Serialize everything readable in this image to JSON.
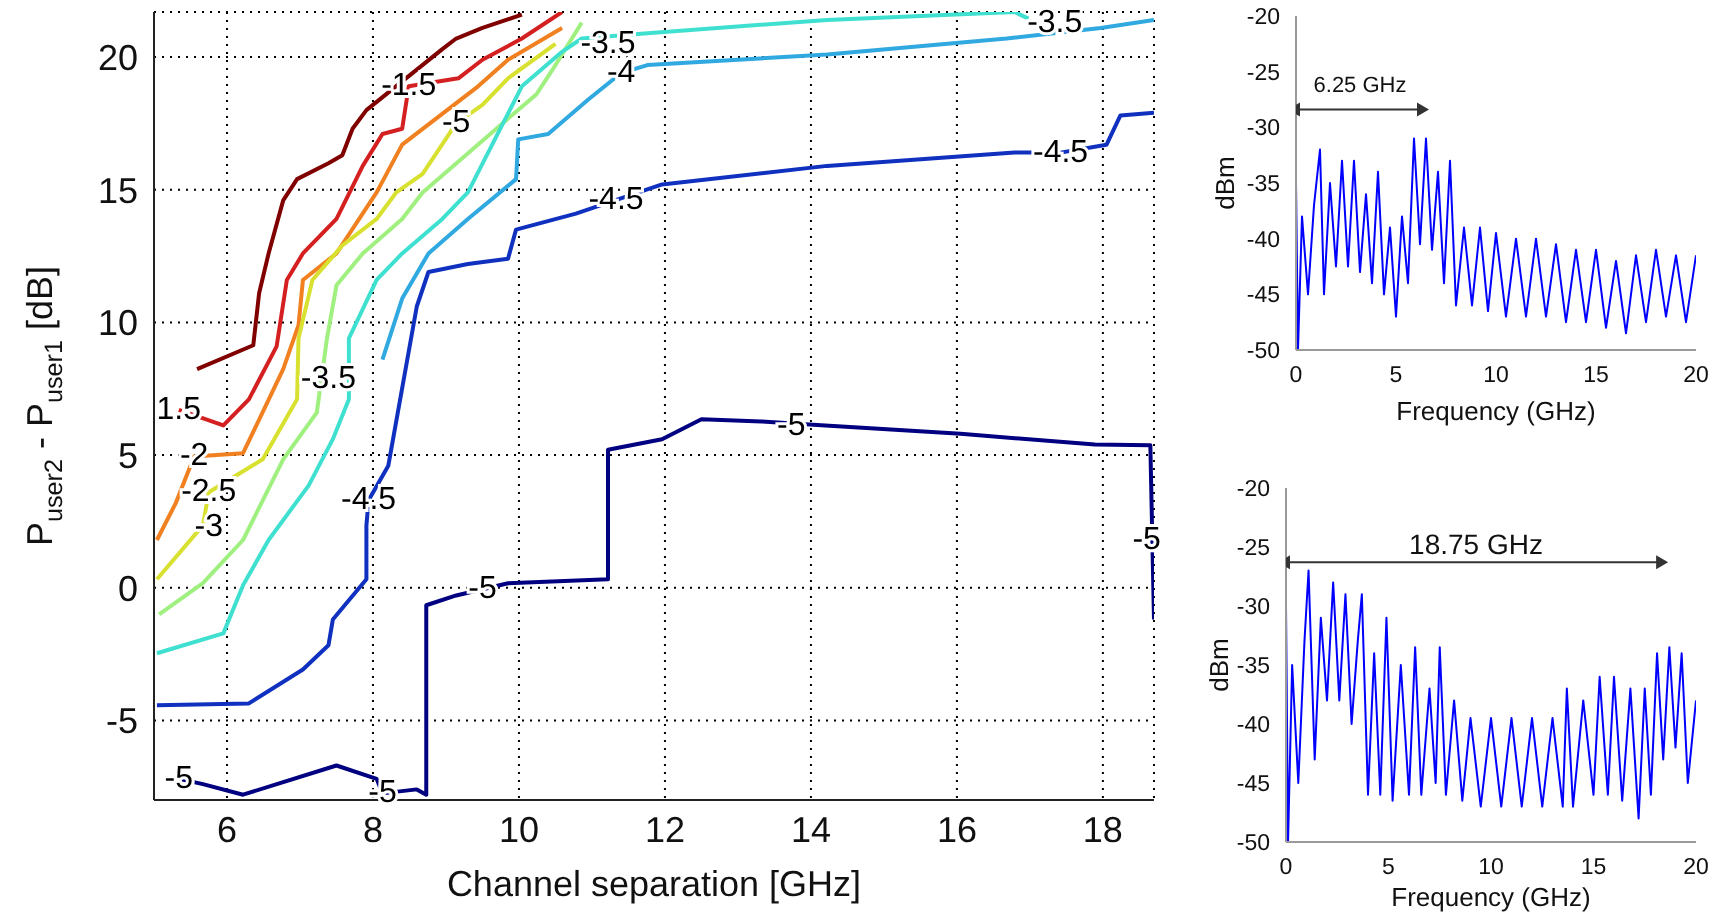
{
  "chart_data": [
    {
      "type": "line",
      "xlabel": "Channel separation [GHz]",
      "ylabel": "P$_{user2}$ - P$_{user1}$ [dB]",
      "xlim": [
        5,
        18.7
      ],
      "xticks": [
        6,
        8,
        10,
        12,
        14,
        16,
        18
      ],
      "ylim": [
        -8,
        21.7
      ],
      "yticks": [
        -5,
        0,
        5,
        10,
        15,
        20
      ],
      "grid": true,
      "series": [
        {
          "color": "#800000",
          "x": [
            5.59,
            6.36,
            6.44,
            6.57,
            6.77,
            6.96,
            7.39,
            7.58,
            7.72,
            7.91,
            8.95,
            9.14,
            9.5,
            10.04
          ],
          "values": [
            8.24,
            9.14,
            11.1,
            12.6,
            14.6,
            15.4,
            16.0,
            16.3,
            17.3,
            18.0,
            20.3,
            20.7,
            21.1,
            21.6
          ]
        },
        {
          "color": "#d42020",
          "x": [
            5.34,
            5.95,
            6.3,
            6.68,
            6.82,
            7.04,
            7.5,
            7.86,
            8.13,
            8.4,
            8.49,
            9.17,
            9.5,
            10.04,
            10.59
          ],
          "values": [
            6.7,
            6.12,
            7.1,
            9.1,
            11.6,
            12.6,
            13.9,
            15.9,
            17.1,
            17.3,
            18.9,
            19.2,
            19.9,
            20.7,
            21.7
          ]
        },
        {
          "color": "#f08020",
          "x": [
            5.04,
            5.3,
            5.55,
            6.22,
            6.77,
            6.98,
            7.04,
            7.5,
            8.05,
            8.4,
            9.44,
            9.85,
            10.59
          ],
          "values": [
            1.8,
            3.2,
            4.95,
            5.07,
            8.24,
            9.9,
            11.6,
            12.6,
            14.9,
            16.7,
            18.9,
            19.9,
            21.1
          ]
        },
        {
          "color": "#d8e030",
          "x": [
            5.04,
            5.67,
            5.75,
            6.49,
            6.96,
            6.98,
            7.17,
            7.58,
            8.05,
            8.32,
            8.68,
            9.14,
            9.5,
            9.85,
            10.5
          ],
          "values": [
            0.32,
            2.35,
            3.6,
            4.84,
            7.1,
            9.4,
            11.6,
            12.9,
            13.9,
            14.9,
            15.6,
            17.5,
            18.2,
            19.2,
            20.5
          ]
        },
        {
          "color": "#a0f080",
          "x": [
            5.07,
            5.67,
            6.22,
            6.77,
            7.23,
            7.37,
            7.5,
            7.86,
            8.4,
            8.68,
            9.69,
            10.24,
            10.5,
            10.86
          ],
          "values": [
            -1.0,
            0.17,
            1.8,
            4.84,
            6.6,
            9.4,
            11.4,
            12.6,
            13.9,
            14.9,
            17.3,
            18.6,
            19.7,
            21.3
          ]
        },
        {
          "color": "#40e0d0",
          "x": [
            5.04,
            5.95,
            6.22,
            6.57,
            7.12,
            7.45,
            7.67,
            7.67,
            8.05,
            8.4,
            8.95,
            9.3,
            10.04,
            10.59,
            10.86,
            11.76,
            14.22,
            16.79,
            16.98
          ],
          "values": [
            -2.47,
            -1.72,
            0.09,
            1.8,
            3.86,
            5.6,
            7.1,
            9.4,
            11.6,
            12.6,
            13.9,
            14.9,
            18.9,
            20.2,
            20.7,
            20.9,
            21.4,
            21.7,
            21.45
          ]
        },
        {
          "color": "#30a8e0",
          "x": [
            8.13,
            8.4,
            8.76,
            9.3,
            9.96,
            9.99,
            10.4,
            10.95,
            11.4,
            11.76,
            14.22,
            16.68,
            17.97,
            18.7
          ],
          "values": [
            8.6,
            10.9,
            12.6,
            13.9,
            15.4,
            16.9,
            17.1,
            18.4,
            19.4,
            19.7,
            20.1,
            20.7,
            21.1,
            21.4
          ]
        },
        {
          "color": "#1030c0",
          "x": [
            5.04,
            6.3,
            7.04,
            7.39,
            7.45,
            7.91,
            7.91,
            7.94,
            8.21,
            8.6,
            8.76,
            9.3,
            9.85,
            9.96,
            10.78,
            11.96,
            14.22,
            16.79,
            17.42,
            18.05,
            18.24,
            18.7
          ],
          "values": [
            -4.43,
            -4.36,
            -3.08,
            -2.17,
            -1.2,
            0.32,
            2.35,
            3.3,
            4.6,
            10.6,
            11.9,
            12.2,
            12.4,
            13.5,
            14.1,
            15.2,
            15.9,
            16.4,
            16.4,
            16.7,
            17.8,
            17.9
          ]
        },
        {
          "color": "#000080",
          "x": [
            5.34,
            5.67,
            6.22,
            7.5,
            8.05,
            8.13,
            8.6,
            8.73,
            8.73,
            9.14,
            9.85,
            11.22,
            11.22,
            11.96,
            12.5,
            13.32,
            14.14,
            16.05,
            17.89,
            18.65,
            18.7
          ],
          "values": [
            -7.2,
            -7.4,
            -7.8,
            -6.7,
            -7.2,
            -7.75,
            -7.6,
            -7.8,
            -0.66,
            -0.29,
            0.17,
            0.32,
            5.2,
            5.6,
            6.35,
            6.27,
            6.12,
            5.8,
            5.4,
            5.37,
            -1.2
          ]
        }
      ],
      "annotations": [
        {
          "text": "1.5",
          "x": 5.34,
          "y": 6.7
        },
        {
          "text": "-2",
          "x": 5.55,
          "y": 4.95
        },
        {
          "text": "-2.5",
          "x": 5.75,
          "y": 3.6
        },
        {
          "text": "-3",
          "x": 5.75,
          "y": 2.3
        },
        {
          "text": "-3.5",
          "x": 7.39,
          "y": 7.86
        },
        {
          "text": "-4.5",
          "x": 7.94,
          "y": 3.3
        },
        {
          "text": "-1.5",
          "x": 8.49,
          "y": 18.9
        },
        {
          "text": "-5",
          "x": 9.14,
          "y": 17.5
        },
        {
          "text": "-3.5",
          "x": 11.22,
          "y": 20.5
        },
        {
          "text": "-4",
          "x": 11.4,
          "y": 19.4
        },
        {
          "text": "-3.5",
          "x": 17.34,
          "y": 21.3
        },
        {
          "text": "-4.5",
          "x": 11.33,
          "y": 14.6
        },
        {
          "text": "-4.5",
          "x": 17.42,
          "y": 16.4
        },
        {
          "text": "-5",
          "x": 13.73,
          "y": 6.1
        },
        {
          "text": "-5",
          "x": 9.5,
          "y": -0.06
        },
        {
          "text": "-5",
          "x": 18.6,
          "y": 1.8
        },
        {
          "text": "-5",
          "x": 5.34,
          "y": -7.2
        },
        {
          "text": "-5",
          "x": 8.13,
          "y": -7.75
        }
      ]
    },
    {
      "type": "line",
      "xlabel": "Frequency (GHz)",
      "ylabel": "dBm",
      "xlim": [
        0,
        20
      ],
      "xticks": [
        0,
        5,
        10,
        15,
        20
      ],
      "ylim": [
        -50,
        -20
      ],
      "yticks": [
        -50,
        -45,
        -40,
        -35,
        -30,
        -25,
        -20
      ],
      "annotations": [
        "6.25 GHz"
      ],
      "series": [
        {
          "color": "#0000ff",
          "x": [
            0,
            0.1,
            0.3,
            0.6,
            0.9,
            1.2,
            1.4,
            1.7,
            2,
            2.3,
            2.6,
            2.9,
            3.2,
            3.5,
            3.8,
            4.1,
            4.4,
            4.7,
            5,
            5.3,
            5.6,
            5.9,
            6.2,
            6.5,
            6.8,
            7.1,
            7.4,
            7.7,
            8,
            8.4,
            8.8,
            9.2,
            9.6,
            10,
            10.5,
            11,
            11.5,
            12,
            12.5,
            13,
            13.5,
            14,
            14.5,
            15,
            15.5,
            16,
            16.5,
            17,
            17.5,
            18,
            18.5,
            19,
            19.5,
            20
          ],
          "values": [
            -35,
            -50,
            -38,
            -45,
            -37,
            -32,
            -45,
            -35,
            -42.5,
            -33,
            -42.5,
            -33,
            -43,
            -36,
            -44,
            -34,
            -45,
            -39,
            -47,
            -38,
            -44,
            -31,
            -40.5,
            -31,
            -41,
            -34,
            -44,
            -33,
            -46,
            -39,
            -46,
            -39,
            -46.5,
            -39.5,
            -47,
            -40,
            -47,
            -40,
            -47,
            -40.5,
            -47.5,
            -41,
            -47.5,
            -41,
            -48,
            -42,
            -48.5,
            -41.5,
            -47.5,
            -41,
            -47,
            -41.5,
            -47.5,
            -41.5
          ]
        },
        {
          "color": "#333333",
          "marker": "triangle",
          "x": [
            0,
            6.25
          ],
          "values": [
            -28.4,
            -28.4
          ]
        }
      ]
    },
    {
      "type": "line",
      "xlabel": "Frequency (GHz)",
      "ylabel": "dBm",
      "xlim": [
        0,
        20
      ],
      "xticks": [
        0,
        5,
        10,
        15,
        20
      ],
      "ylim": [
        -50,
        -20
      ],
      "yticks": [
        -50,
        -45,
        -40,
        -35,
        -30,
        -25,
        -20
      ],
      "annotations": [
        "18.75 GHz"
      ],
      "series": [
        {
          "color": "#0000ff",
          "x": [
            0,
            0.1,
            0.3,
            0.6,
            0.9,
            1.1,
            1.4,
            1.7,
            2,
            2.3,
            2.6,
            2.9,
            3.2,
            3.5,
            3.7,
            4,
            4.3,
            4.6,
            4.9,
            5.2,
            5.6,
            6,
            6.3,
            6.6,
            7,
            7.3,
            7.5,
            7.8,
            8.2,
            8.6,
            9,
            9.5,
            10,
            10.5,
            11,
            11.5,
            12,
            12.5,
            13,
            13.5,
            13.7,
            14,
            14.5,
            15,
            15.3,
            15.7,
            16,
            16.4,
            16.8,
            17.2,
            17.5,
            17.8,
            18.1,
            18.4,
            18.7,
            19,
            19.3,
            19.6,
            20
          ],
          "values": [
            -30,
            -50,
            -35,
            -45,
            -33,
            -27,
            -43,
            -31,
            -38,
            -28,
            -38,
            -29,
            -40,
            -33,
            -29,
            -46,
            -34,
            -46,
            -31,
            -46.5,
            -35,
            -46,
            -33.5,
            -46,
            -37,
            -45,
            -33.5,
            -46,
            -38,
            -46.5,
            -39.5,
            -47,
            -39.5,
            -47,
            -39.5,
            -47,
            -39.5,
            -47,
            -39.5,
            -47,
            -37,
            -47,
            -38,
            -46,
            -36,
            -46,
            -36,
            -46.5,
            -37,
            -48,
            -37,
            -46,
            -34,
            -43,
            -33.5,
            -42,
            -34,
            -45,
            -38
          ]
        },
        {
          "color": "#333333",
          "marker": "triangle",
          "x": [
            0,
            18.25
          ],
          "values": [
            -26.3,
            -26.3
          ]
        }
      ]
    }
  ]
}
